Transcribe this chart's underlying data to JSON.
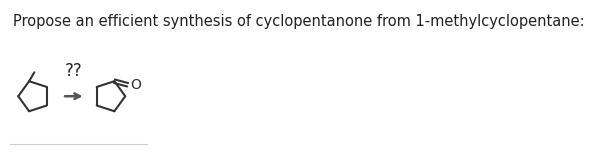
{
  "title": "Propose an efficient synthesis of cyclopentanone from 1-methylcyclopentane:",
  "title_fontsize": 10.5,
  "title_color": "#222222",
  "background_color": "#ffffff",
  "line_color": "#333333",
  "arrow_label": "??",
  "arrow_label_fontsize": 12,
  "bottom_line_color": "#cccccc"
}
